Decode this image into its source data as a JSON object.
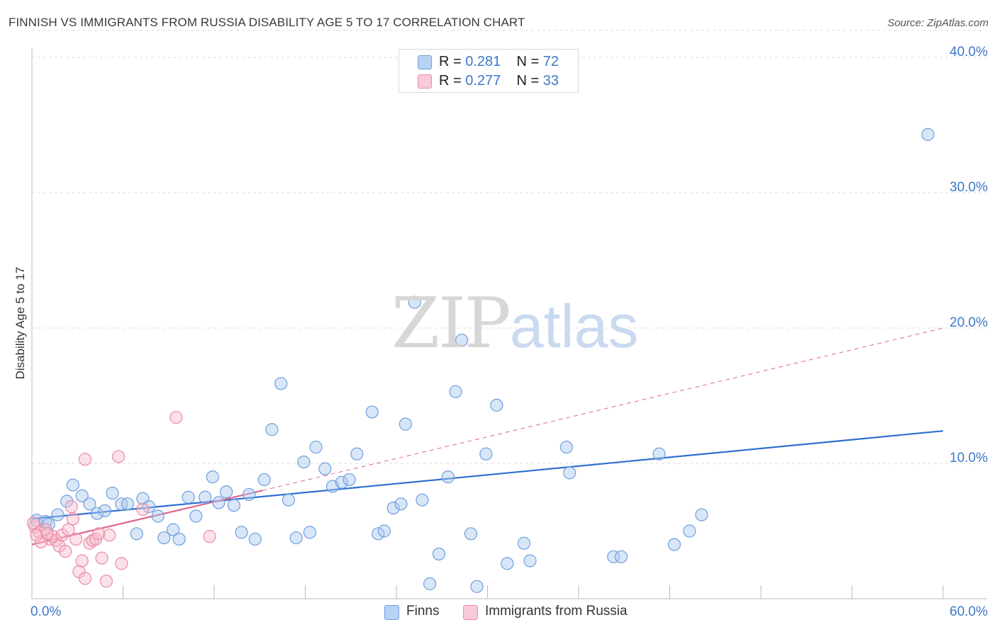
{
  "title": "FINNISH VS IMMIGRANTS FROM RUSSIA DISABILITY AGE 5 TO 17 CORRELATION CHART",
  "source": "Source: ZipAtlas.com",
  "watermark": {
    "zip": "ZIP",
    "atlas": "atlas"
  },
  "legend": {
    "rows": [
      {
        "r_label": "R =",
        "r_value": "0.281",
        "n_label": "N =",
        "n_value": "72"
      },
      {
        "r_label": "R =",
        "r_value": "0.277",
        "n_label": "N =",
        "n_value": "33"
      }
    ]
  },
  "bottom_legend": {
    "finns": "Finns",
    "russia": "Immigrants from Russia"
  },
  "colors": {
    "finns_fill": "#a9c8f0",
    "finns_stroke": "#6f9fdc",
    "finns_line": "#2f6fcf",
    "russia_fill": "#f7bccd",
    "russia_stroke": "#ea8aa6",
    "russia_line": "#e0668f",
    "tick_text": "#3f78c8",
    "grid": "#dddddd"
  },
  "chart_data": {
    "type": "scatter",
    "title": "FINNISH VS IMMIGRANTS FROM RUSSIA DISABILITY AGE 5 TO 17 CORRELATION CHART",
    "xlabel": "",
    "ylabel": "Disability Age 5 to 17",
    "xlim": [
      0,
      60
    ],
    "ylim": [
      0,
      42
    ],
    "x_tick_labels": [
      "0.0%",
      "60.0%"
    ],
    "y_ticks": [
      10,
      20,
      30,
      40
    ],
    "y_tick_labels": [
      "10.0%",
      "20.0%",
      "30.0%",
      "40.0%"
    ],
    "grid": true,
    "legend_position": "top-center",
    "series": [
      {
        "name": "Finns",
        "R": 0.281,
        "N": 72,
        "trend": {
          "x": [
            0,
            60
          ],
          "y": [
            5.9,
            12.4
          ]
        },
        "points": [
          [
            0.3,
            5.8
          ],
          [
            0.9,
            5.7
          ],
          [
            1.1,
            5.5
          ],
          [
            1.7,
            6.2
          ],
          [
            2.3,
            7.2
          ],
          [
            2.7,
            8.4
          ],
          [
            3.3,
            7.6
          ],
          [
            3.8,
            7.0
          ],
          [
            4.3,
            6.3
          ],
          [
            4.8,
            6.5
          ],
          [
            5.3,
            7.8
          ],
          [
            5.9,
            7.0
          ],
          [
            6.3,
            7.0
          ],
          [
            6.9,
            4.8
          ],
          [
            7.3,
            7.4
          ],
          [
            7.7,
            6.8
          ],
          [
            8.3,
            6.1
          ],
          [
            8.7,
            4.5
          ],
          [
            9.3,
            5.1
          ],
          [
            9.7,
            4.4
          ],
          [
            10.3,
            7.5
          ],
          [
            10.8,
            6.1
          ],
          [
            11.4,
            7.5
          ],
          [
            11.9,
            9.0
          ],
          [
            12.3,
            7.1
          ],
          [
            12.8,
            7.9
          ],
          [
            13.3,
            6.9
          ],
          [
            13.8,
            4.9
          ],
          [
            14.3,
            7.7
          ],
          [
            14.7,
            4.4
          ],
          [
            15.3,
            8.8
          ],
          [
            15.8,
            12.5
          ],
          [
            16.4,
            15.9
          ],
          [
            16.9,
            7.3
          ],
          [
            17.4,
            4.5
          ],
          [
            17.9,
            10.1
          ],
          [
            18.3,
            4.9
          ],
          [
            18.7,
            11.2
          ],
          [
            19.3,
            9.6
          ],
          [
            19.8,
            8.3
          ],
          [
            20.4,
            8.6
          ],
          [
            20.9,
            8.8
          ],
          [
            21.4,
            10.7
          ],
          [
            22.4,
            13.8
          ],
          [
            22.8,
            4.8
          ],
          [
            23.2,
            5.0
          ],
          [
            23.8,
            6.7
          ],
          [
            24.3,
            7.0
          ],
          [
            24.6,
            12.9
          ],
          [
            25.2,
            21.9
          ],
          [
            25.7,
            7.3
          ],
          [
            26.2,
            1.1
          ],
          [
            26.8,
            3.3
          ],
          [
            27.4,
            9.0
          ],
          [
            27.9,
            15.3
          ],
          [
            28.3,
            19.1
          ],
          [
            28.9,
            4.8
          ],
          [
            29.3,
            0.9
          ],
          [
            29.9,
            10.7
          ],
          [
            30.6,
            14.3
          ],
          [
            31.3,
            2.6
          ],
          [
            32.4,
            4.1
          ],
          [
            32.8,
            2.8
          ],
          [
            35.2,
            11.2
          ],
          [
            35.4,
            9.3
          ],
          [
            38.3,
            3.1
          ],
          [
            38.8,
            3.1
          ],
          [
            41.3,
            10.7
          ],
          [
            42.3,
            4.0
          ],
          [
            43.3,
            5.0
          ],
          [
            44.1,
            6.2
          ],
          [
            59.0,
            34.3
          ]
        ]
      },
      {
        "name": "Immigrants from Russia",
        "R": 0.277,
        "N": 33,
        "trend": {
          "x": [
            0,
            15.2
          ],
          "y": [
            4.0,
            8.0
          ]
        },
        "trend_ext": {
          "x": [
            15.2,
            60
          ],
          "y": [
            8.0,
            20.0
          ]
        },
        "points": [
          [
            0.2,
            5.3
          ],
          [
            0.5,
            4.9
          ],
          [
            0.9,
            5.1
          ],
          [
            1.2,
            4.4
          ],
          [
            1.4,
            4.6
          ],
          [
            1.6,
            4.3
          ],
          [
            1.8,
            3.9
          ],
          [
            2.0,
            4.7
          ],
          [
            2.2,
            3.5
          ],
          [
            2.4,
            5.1
          ],
          [
            2.6,
            6.8
          ],
          [
            2.7,
            5.9
          ],
          [
            2.9,
            4.4
          ],
          [
            3.1,
            2.0
          ],
          [
            3.3,
            2.8
          ],
          [
            3.5,
            1.5
          ],
          [
            3.5,
            10.3
          ],
          [
            3.8,
            4.1
          ],
          [
            4.0,
            4.3
          ],
          [
            4.2,
            4.4
          ],
          [
            4.4,
            4.8
          ],
          [
            4.6,
            3.0
          ],
          [
            4.9,
            1.3
          ],
          [
            5.1,
            4.7
          ],
          [
            5.7,
            10.5
          ],
          [
            5.9,
            2.6
          ],
          [
            7.3,
            6.6
          ],
          [
            9.5,
            13.4
          ],
          [
            11.7,
            4.6
          ],
          [
            0.6,
            4.2
          ],
          [
            1.0,
            4.8
          ],
          [
            0.1,
            5.6
          ],
          [
            0.3,
            4.7
          ]
        ]
      }
    ]
  }
}
